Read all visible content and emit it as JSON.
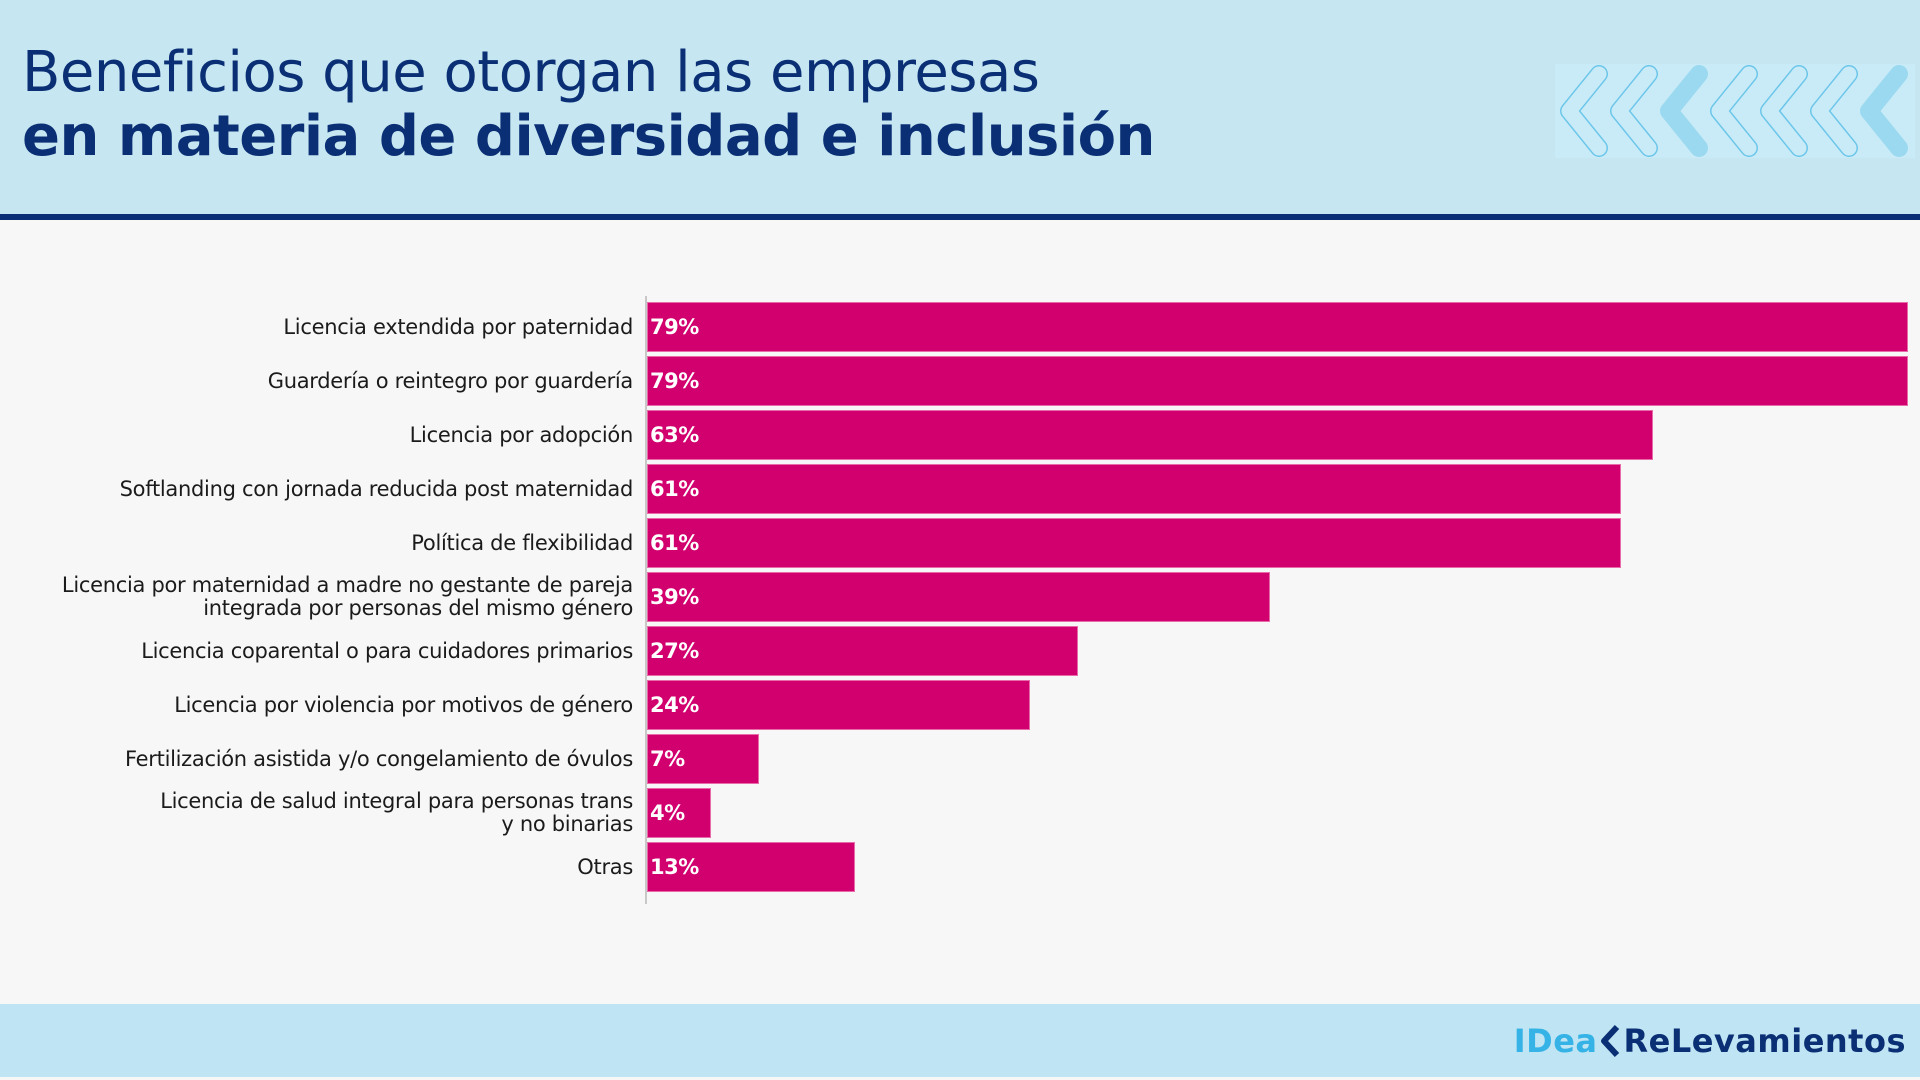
{
  "header": {
    "title_line1": "Beneficios que otorgan las empresas",
    "title_line2": "en materia de diversidad e inclusión",
    "decoration": [
      "chevron-outline",
      "chevron-outline",
      "chevron-filled",
      "chevron-outline",
      "chevron-outline",
      "chevron-outline",
      "chevron-filled"
    ]
  },
  "colors": {
    "header_bg": "#c6e6f2",
    "title": "#0a2f74",
    "bar": "#d1006e",
    "footer_bg": "#bfe4f3",
    "logo_idea": "#36b3e6",
    "logo_relevamientos": "#0a2f74"
  },
  "footer": {
    "logo_part1": "IDea",
    "logo_part2": "ReLevamientos"
  },
  "chart_data": {
    "type": "bar",
    "orientation": "horizontal",
    "title": "Beneficios que otorgan las empresas en materia de diversidad e inclusión",
    "xlabel": "",
    "ylabel": "",
    "xlim": [
      0,
      79
    ],
    "grid": false,
    "legend": "none",
    "value_suffix": "%",
    "categories": [
      "Licencia extendida por paternidad",
      "Guardería o reintegro por guardería",
      "Licencia por adopción",
      "Softlanding con jornada reducida post maternidad",
      "Política de flexibilidad",
      "Licencia por maternidad a madre no gestante de pareja\nintegrada por personas del mismo género",
      "Licencia coparental o para cuidadores primarios",
      "Licencia por violencia por motivos de género",
      "Fertilización asistida y/o congelamiento de óvulos",
      "Licencia de salud integral para personas trans\ny no binarias",
      "Otras"
    ],
    "values": [
      79,
      79,
      63,
      61,
      61,
      39,
      27,
      24,
      7,
      4,
      13
    ],
    "value_labels": [
      "79%",
      "79%",
      "63%",
      "61%",
      "61%",
      "39%",
      "27%",
      "24%",
      "7%",
      "4%",
      "13%"
    ]
  }
}
